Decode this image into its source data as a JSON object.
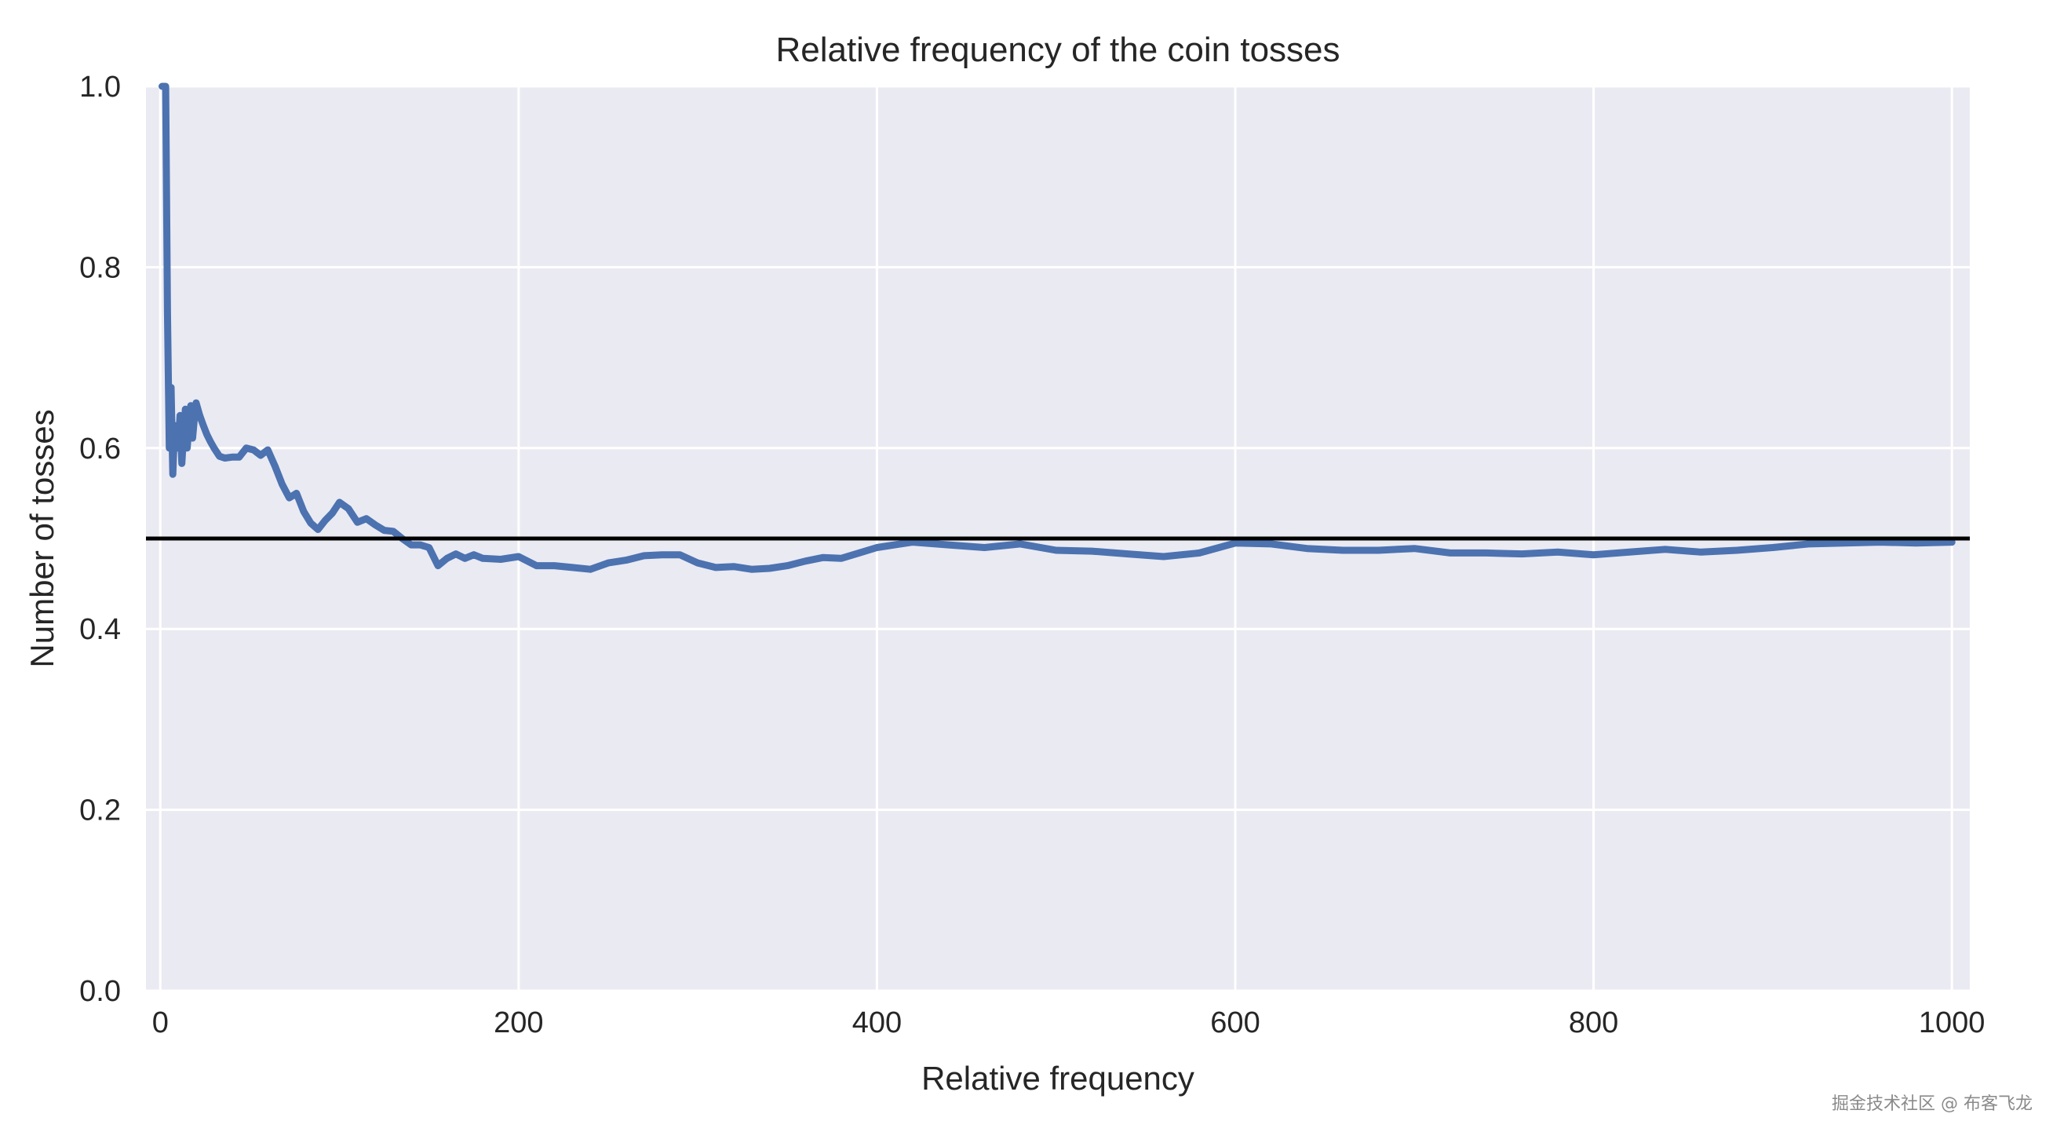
{
  "chart_data": {
    "type": "line",
    "title": "Relative frequency of the coin tosses",
    "xlabel": "Relative frequency",
    "ylabel": "Number of tosses",
    "xlim": [
      -8,
      1010
    ],
    "ylim": [
      0.0,
      1.0
    ],
    "xticks": [
      0,
      200,
      400,
      600,
      800,
      1000
    ],
    "yticks": [
      0.0,
      0.2,
      0.4,
      0.6,
      0.8,
      1.0
    ],
    "ytick_labels": [
      "0.0",
      "0.2",
      "0.4",
      "0.6",
      "0.8",
      "1.0"
    ],
    "grid": true,
    "reference_line": {
      "y": 0.5,
      "color": "#000000"
    },
    "series": [
      {
        "name": "relative frequency",
        "color": "#4c72b0",
        "x": [
          1,
          2,
          3,
          4,
          5,
          6,
          7,
          8,
          9,
          10,
          11,
          12,
          13,
          14,
          15,
          16,
          17,
          18,
          19,
          20,
          22,
          24,
          26,
          28,
          30,
          33,
          36,
          40,
          44,
          48,
          52,
          56,
          60,
          64,
          68,
          72,
          76,
          80,
          84,
          88,
          92,
          96,
          100,
          105,
          110,
          115,
          120,
          125,
          130,
          135,
          140,
          145,
          150,
          155,
          160,
          165,
          170,
          175,
          180,
          190,
          200,
          210,
          220,
          230,
          240,
          250,
          260,
          270,
          280,
          290,
          300,
          310,
          320,
          330,
          340,
          350,
          360,
          370,
          380,
          390,
          400,
          420,
          440,
          460,
          480,
          500,
          520,
          540,
          560,
          580,
          600,
          620,
          640,
          660,
          680,
          700,
          720,
          740,
          760,
          780,
          800,
          820,
          840,
          860,
          880,
          900,
          920,
          940,
          960,
          980,
          1000
        ],
        "y": [
          1.0,
          1.0,
          1.0,
          0.75,
          0.6,
          0.667,
          0.571,
          0.625,
          0.6,
          0.6,
          0.636,
          0.583,
          0.615,
          0.643,
          0.6,
          0.625,
          0.647,
          0.611,
          0.632,
          0.65,
          0.636,
          0.625,
          0.615,
          0.607,
          0.6,
          0.591,
          0.589,
          0.59,
          0.59,
          0.6,
          0.598,
          0.592,
          0.598,
          0.58,
          0.56,
          0.545,
          0.55,
          0.53,
          0.517,
          0.51,
          0.52,
          0.528,
          0.54,
          0.533,
          0.518,
          0.522,
          0.515,
          0.509,
          0.508,
          0.5,
          0.493,
          0.493,
          0.49,
          0.47,
          0.478,
          0.483,
          0.478,
          0.482,
          0.478,
          0.477,
          0.48,
          0.47,
          0.47,
          0.468,
          0.466,
          0.473,
          0.476,
          0.481,
          0.482,
          0.482,
          0.473,
          0.468,
          0.469,
          0.466,
          0.467,
          0.47,
          0.475,
          0.479,
          0.478,
          0.484,
          0.49,
          0.496,
          0.493,
          0.49,
          0.494,
          0.487,
          0.486,
          0.483,
          0.48,
          0.484,
          0.495,
          0.494,
          0.489,
          0.487,
          0.487,
          0.489,
          0.484,
          0.484,
          0.483,
          0.485,
          0.482,
          0.485,
          0.488,
          0.485,
          0.487,
          0.49,
          0.494,
          0.495,
          0.496,
          0.495,
          0.496
        ]
      }
    ]
  },
  "watermark": "掘金技术社区 @ 布客飞龙"
}
